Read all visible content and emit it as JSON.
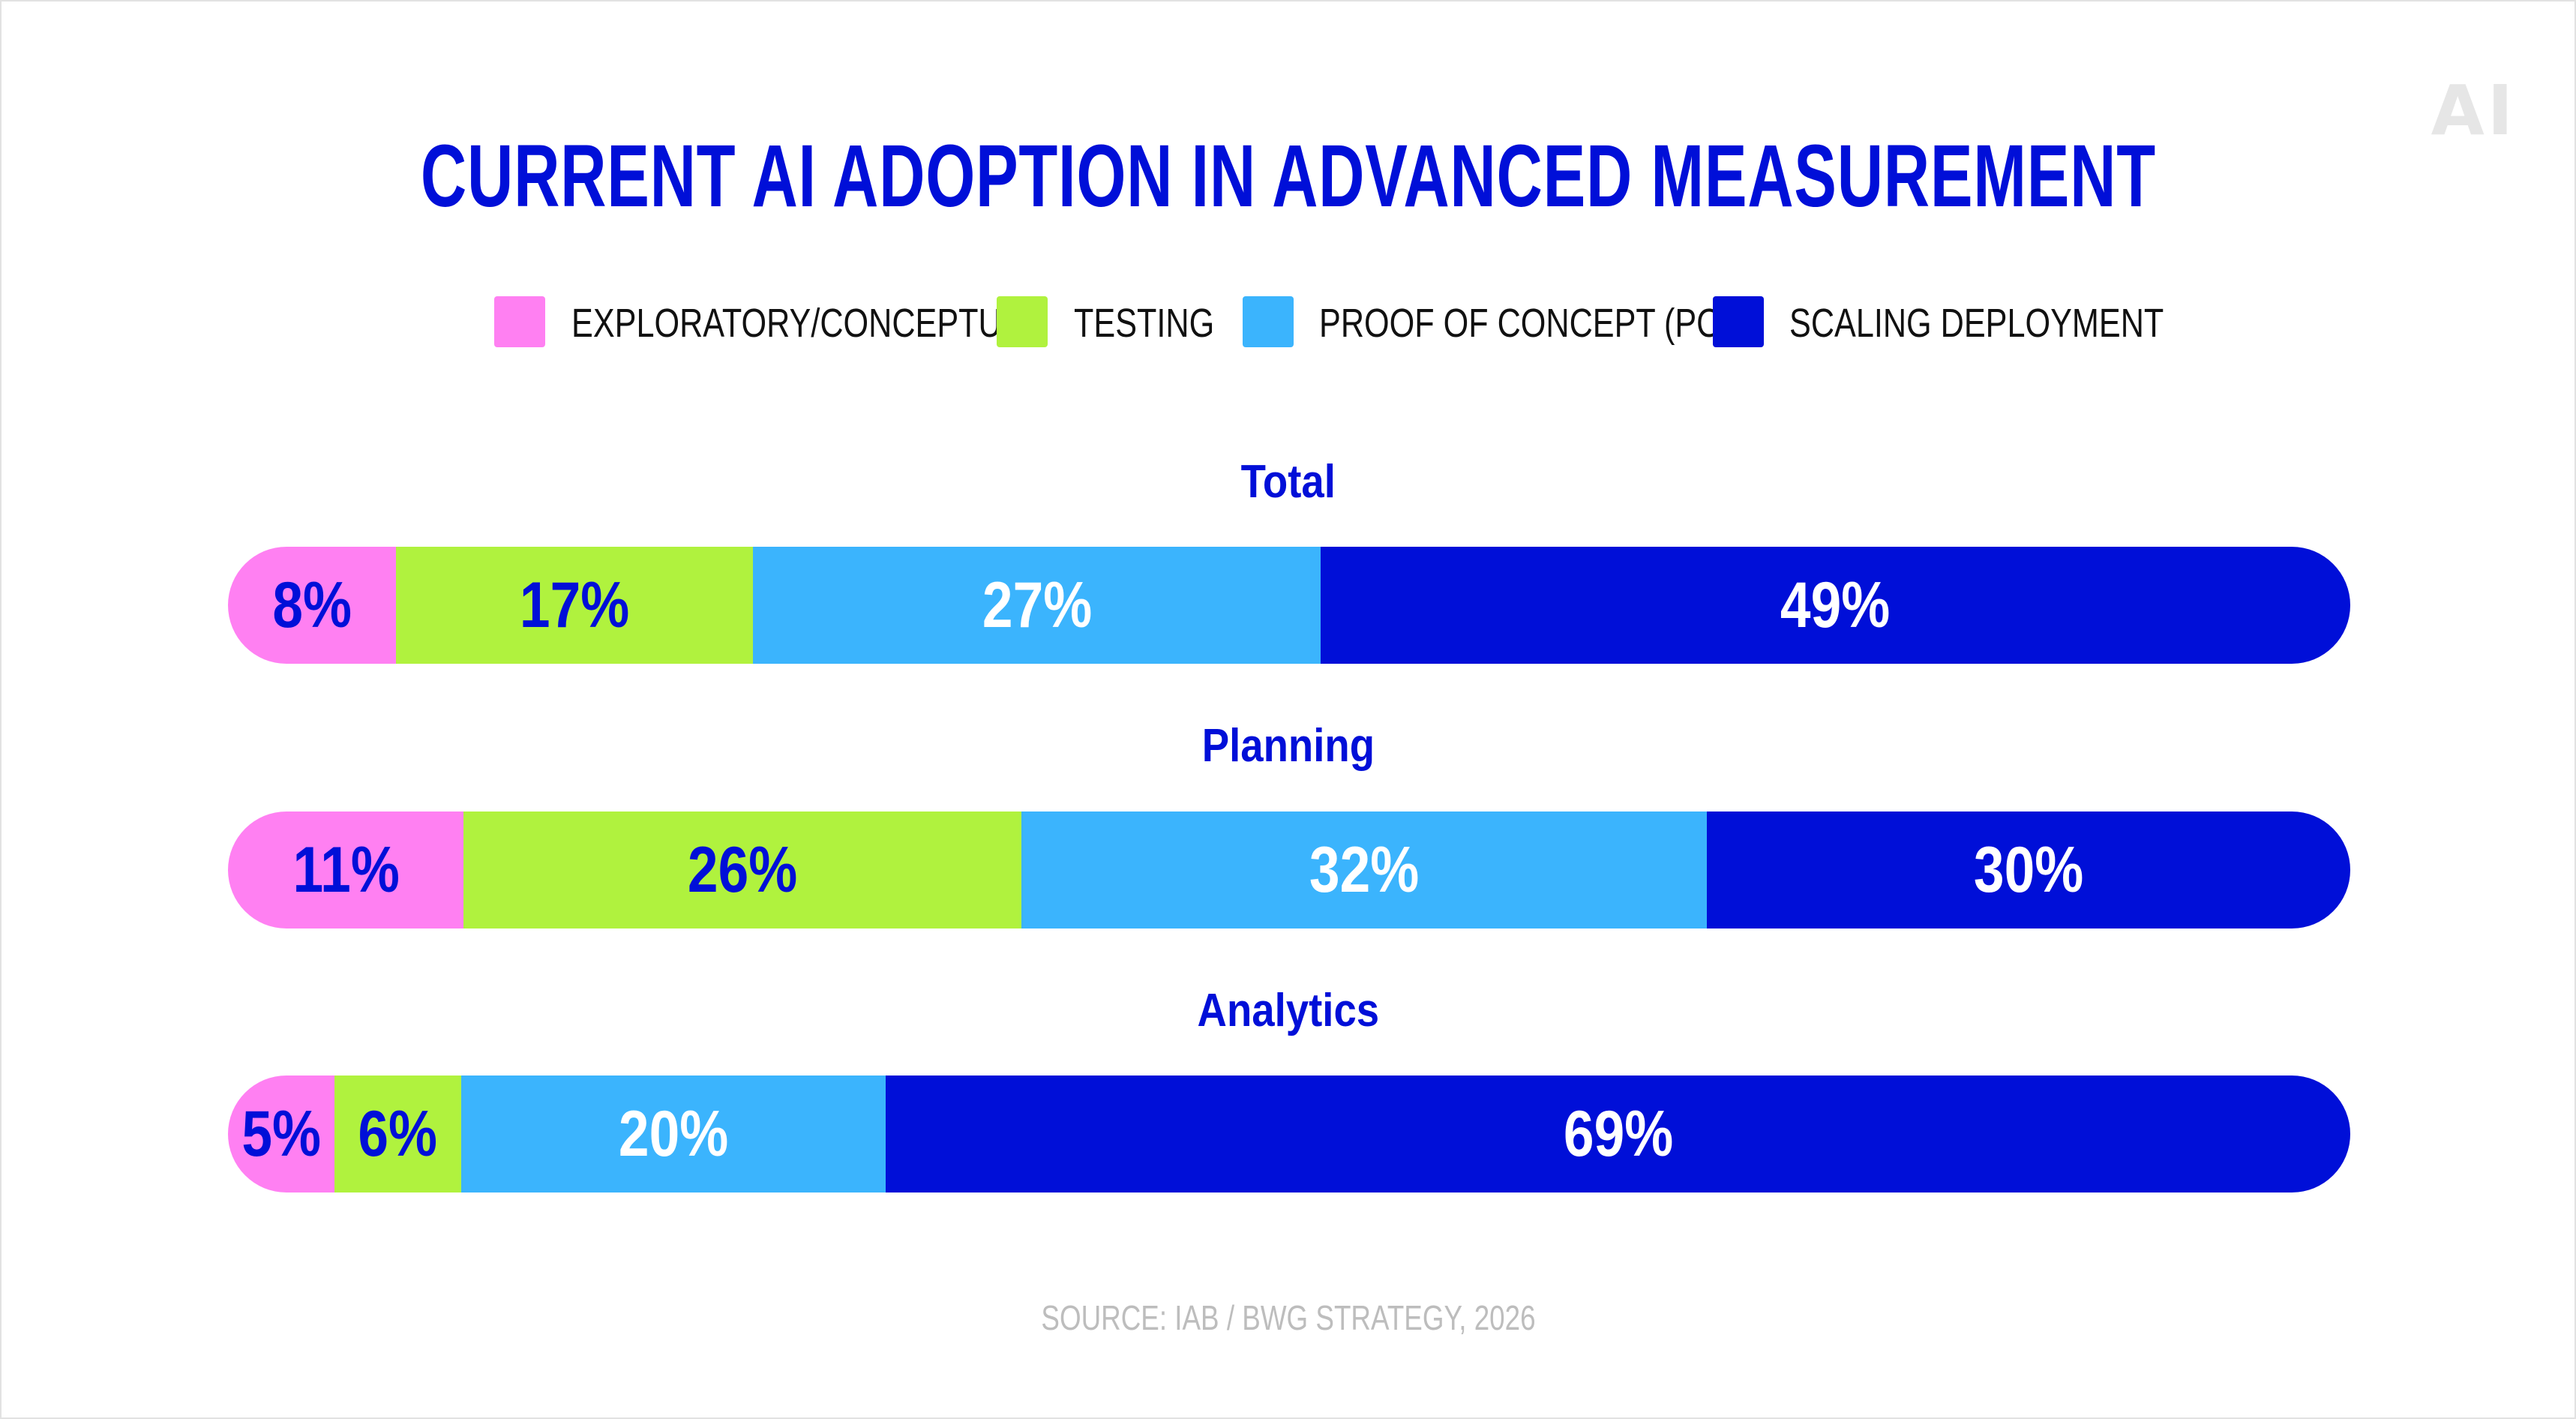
{
  "logo_text": "AI",
  "chart_data": {
    "type": "bar",
    "orientation": "horizontal-stacked-100",
    "title": "CURRENT AI ADOPTION IN ADVANCED MEASUREMENT",
    "legend_position": "top",
    "series": [
      {
        "name": "EXPLORATORY/CONCEPTUAL",
        "color": "#ff80f2",
        "label_color": "#000fd8",
        "values": [
          8,
          11,
          5
        ]
      },
      {
        "name": "TESTING",
        "color": "#b0f23e",
        "label_color": "#000fd8",
        "values": [
          17,
          26,
          6
        ]
      },
      {
        "name": "PROOF OF CONCEPT (POC)",
        "color": "#3bb4fd",
        "label_color": "#ffffff",
        "values": [
          27,
          32,
          20
        ]
      },
      {
        "name": "SCALING DEPLOYMENT",
        "color": "#000fd8",
        "label_color": "#ffffff",
        "values": [
          49,
          30,
          69
        ]
      }
    ],
    "categories": [
      "Total",
      "Planning",
      "Analytics"
    ],
    "value_suffix": "%",
    "source": "SOURCE: IAB / BWG STRATEGY, 2026"
  }
}
